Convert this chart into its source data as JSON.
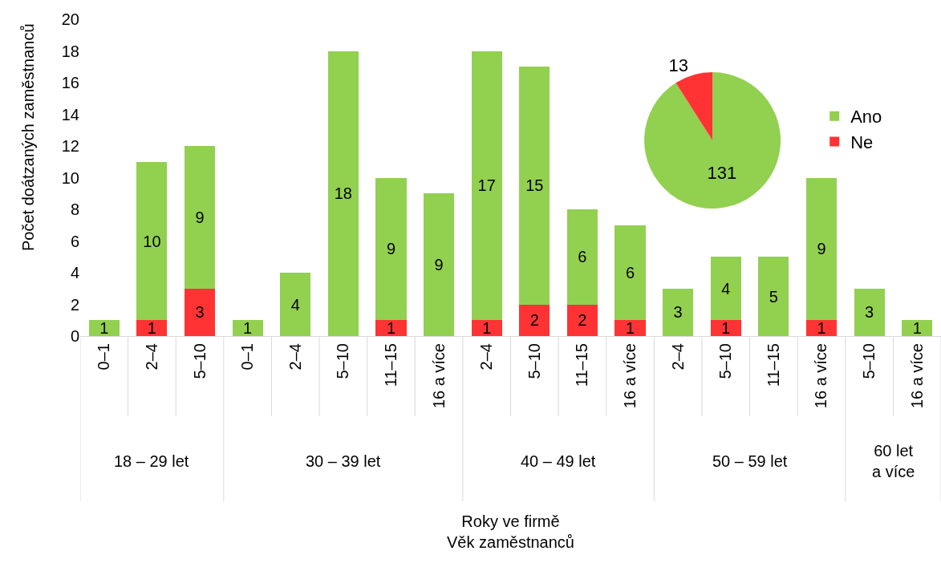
{
  "chart_data": [
    {
      "type": "bar",
      "stacked": true,
      "ylabel": "Počet doátzaných zaměstnanců",
      "xlabel": "Roky ve firmě\nVěk zaměstnanců",
      "categories": [
        "0–1",
        "2–4",
        "5–10",
        "0–1",
        "2–4",
        "5–10",
        "11–15",
        "16 a více",
        "2–4",
        "5–10",
        "11–15",
        "16 a více",
        "2–4",
        "5–10",
        "11–15",
        "16 a více",
        "5–10",
        "16 a více"
      ],
      "series": [
        {
          "color": "#ff3333",
          "values": [
            null,
            1,
            3,
            null,
            null,
            null,
            1,
            null,
            1,
            2,
            2,
            1,
            null,
            1,
            null,
            1,
            null,
            null
          ]
        },
        {
          "color": "#92d050",
          "values": [
            1,
            10,
            9,
            1,
            4,
            18,
            9,
            9,
            17,
            15,
            6,
            6,
            3,
            4,
            5,
            9,
            3,
            1
          ]
        }
      ],
      "annotations": [
        "18 – 29 let",
        "30 – 39 let",
        "40 – 49 let",
        "50 – 59 let",
        "60 let a více"
      ],
      "ylim": [
        0,
        20
      ],
      "yticks": [
        0,
        2,
        4,
        6,
        8,
        10,
        12,
        14,
        16,
        18,
        20
      ],
      "grid": false,
      "data_labels": true
    },
    {
      "type": "pie",
      "categories": [
        "Ano",
        "Ne"
      ],
      "values": [
        131,
        13
      ],
      "colors": [
        "#92d050",
        "#ff3333"
      ],
      "data_labels": true,
      "legend": "right"
    }
  ]
}
